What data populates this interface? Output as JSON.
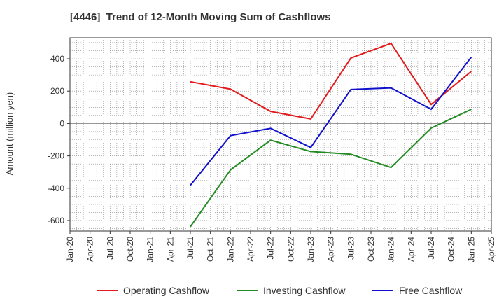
{
  "chart_data": {
    "type": "line",
    "title": "[4446]  Trend of 12-Month Moving Sum of Cashflows",
    "ylabel": "Amount (million yen)",
    "xlabel": "",
    "x_ticks": [
      "Jan-20",
      "Apr-20",
      "Jul-20",
      "Oct-20",
      "Jan-21",
      "Apr-21",
      "Jul-21",
      "Oct-21",
      "Jan-22",
      "Apr-22",
      "Jul-22",
      "Oct-22",
      "Jan-23",
      "Apr-23",
      "Jul-23",
      "Oct-23",
      "Jan-24",
      "Apr-24",
      "Jul-24",
      "Oct-24",
      "Jan-25",
      "Apr-25"
    ],
    "y_ticks": [
      "400",
      "200",
      "0",
      "-200",
      "-400",
      "-600"
    ],
    "ylim": [
      -665,
      530
    ],
    "grid": true,
    "legend_position": "bottom",
    "x": [
      "Jul-21",
      "Jan-22",
      "Jul-22",
      "Jan-23",
      "Jul-23",
      "Jan-24",
      "Jul-24",
      "Jan-25"
    ],
    "series": [
      {
        "name": "Operating Cashflow",
        "color": "#e31a1c",
        "values": [
          258,
          212,
          75,
          28,
          405,
          495,
          118,
          322
        ]
      },
      {
        "name": "Investing Cashflow",
        "color": "#228b22",
        "values": [
          -638,
          -287,
          -103,
          -173,
          -190,
          -272,
          -28,
          88
        ]
      },
      {
        "name": "Free Cashflow",
        "color": "#1010cc",
        "values": [
          -382,
          -75,
          -30,
          -148,
          210,
          220,
          88,
          410
        ]
      }
    ]
  }
}
